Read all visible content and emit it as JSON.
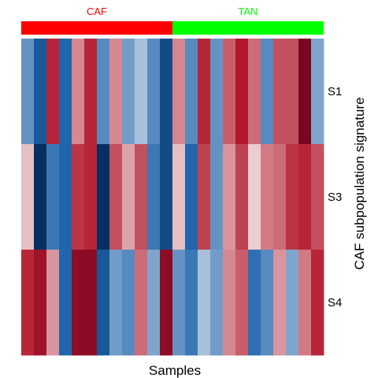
{
  "chart_data": {
    "type": "heatmap",
    "title": "",
    "xlabel": "Samples",
    "ylabel": "CAF subpopulation signature",
    "rows": [
      "S1",
      "S3",
      "S4"
    ],
    "groups": [
      {
        "name": "CAF",
        "color": "#ff0000",
        "n_columns": 12
      },
      {
        "name": "TAN",
        "color": "#00ff00",
        "n_columns": 12
      }
    ],
    "colorscale": {
      "min": -1,
      "max": 1,
      "stops": [
        "#2166ac",
        "#f7f7f7",
        "#b2182b"
      ],
      "extremes": {
        "low": "#053061",
        "high": "#67001f"
      }
    },
    "values": [
      [
        -0.55,
        -0.85,
        0.75,
        -0.8,
        0.4,
        0.75,
        -0.6,
        0.4,
        -0.5,
        -0.3,
        -0.6,
        -0.9,
        0.4,
        -0.6,
        0.75,
        -0.55,
        0.55,
        0.8,
        0.5,
        -0.6,
        0.6,
        0.6,
        0.95,
        -0.45
      ],
      [
        0.2,
        -1.0,
        -0.7,
        -0.8,
        0.7,
        0.75,
        -1.0,
        0.6,
        0.3,
        0.6,
        -0.7,
        -0.9,
        0.2,
        -0.8,
        0.65,
        -0.55,
        0.35,
        0.65,
        0.15,
        0.45,
        0.5,
        0.7,
        0.75,
        0.6
      ],
      [
        0.75,
        0.85,
        0.35,
        -0.8,
        0.9,
        0.9,
        -0.85,
        -0.5,
        -0.6,
        0.5,
        -0.45,
        0.9,
        -0.55,
        -0.7,
        -0.3,
        -0.5,
        0.4,
        0.55,
        -0.75,
        -0.6,
        0.35,
        -0.45,
        0.45,
        0.75
      ]
    ]
  }
}
